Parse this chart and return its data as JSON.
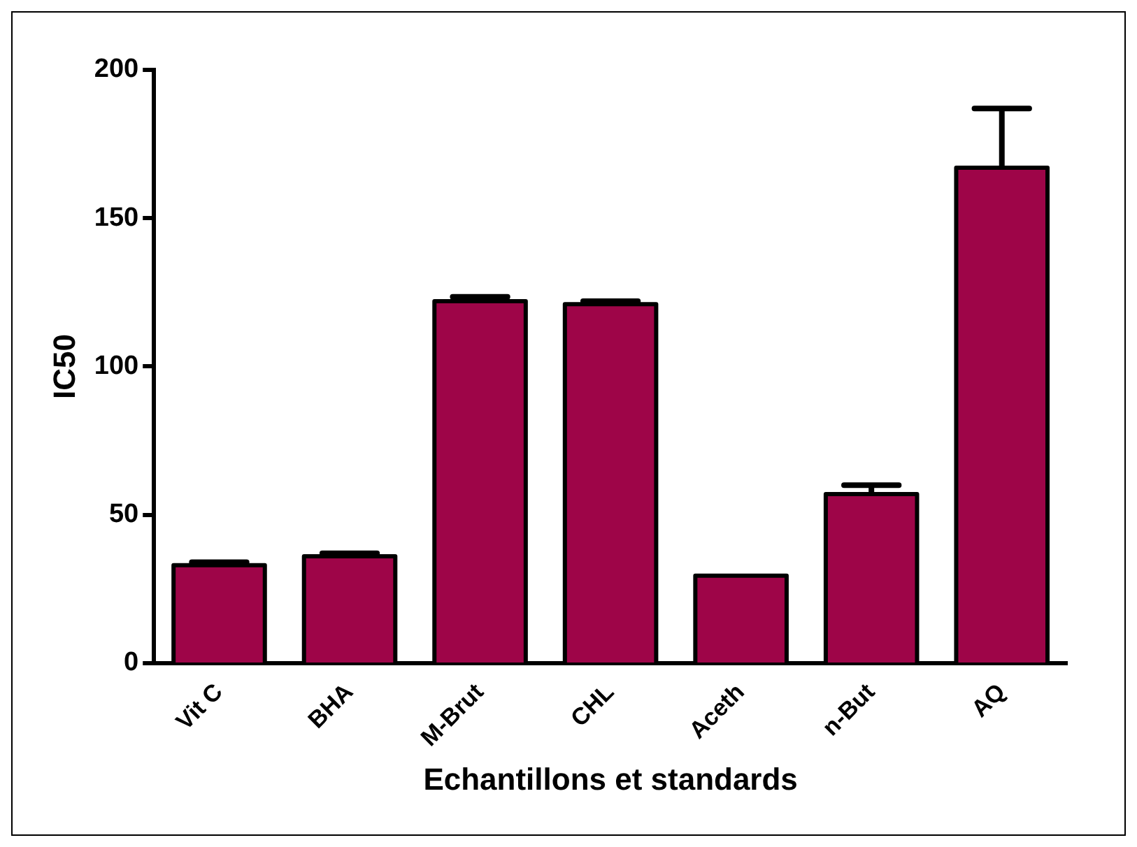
{
  "chart_data": {
    "type": "bar",
    "xlabel": "Echantillons et standards",
    "ylabel": "IC50",
    "categories": [
      "Vit C",
      "BHA",
      "M-Brut",
      "CHL",
      "Aceth",
      "n-But",
      "AQ"
    ],
    "values": [
      33,
      36,
      122,
      121,
      29.5,
      57,
      167
    ],
    "errors": [
      1,
      1,
      1.5,
      1,
      null,
      3,
      20
    ],
    "color": "#9e0548",
    "ylim": [
      0,
      200
    ],
    "yticks": [
      0,
      50,
      100,
      150,
      200
    ],
    "grid": false,
    "legend": false
  }
}
